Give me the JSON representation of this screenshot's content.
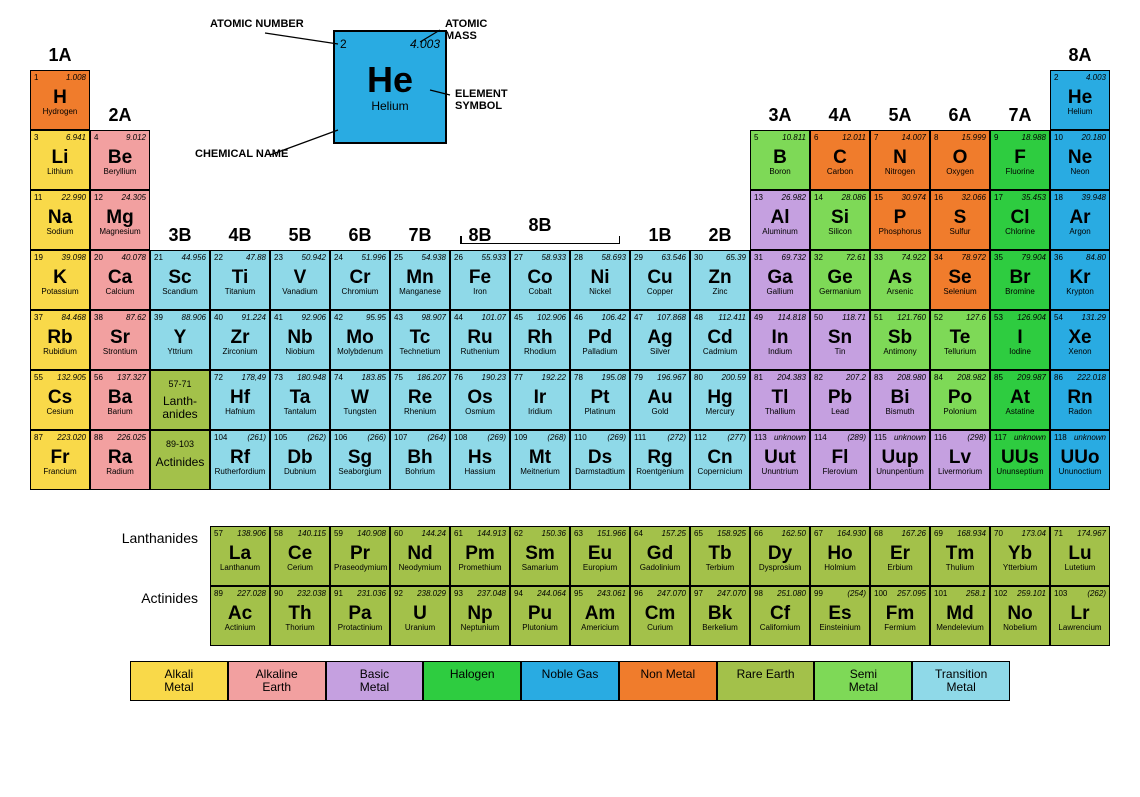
{
  "colors": {
    "alkali": "#f9d949",
    "alkaline": "#f2a0a0",
    "basic": "#c5a0e0",
    "halogen": "#2ecc40",
    "noble": "#29abe2",
    "nonmetal": "#f07c2c",
    "rare": "#a3c14a",
    "semi": "#7ed957",
    "transition": "#8fd9e8"
  },
  "legend_key": {
    "callouts": {
      "atomic_number": "ATOMIC NUMBER",
      "atomic_mass": "ATOMIC MASS",
      "element_symbol": "ELEMENT SYMBOL",
      "chemical_name": "CHEMICAL NAME"
    },
    "example": {
      "num": "2",
      "mass": "4.003",
      "sym": "He",
      "name": "Helium"
    }
  },
  "group_labels": {
    "g1": "1A",
    "g2": "2A",
    "g3": "3B",
    "g4": "4B",
    "g5": "5B",
    "g6": "6B",
    "g7": "7B",
    "g8": "8B",
    "g11": "1B",
    "g12": "2B",
    "g13": "3A",
    "g14": "4A",
    "g15": "5A",
    "g16": "6A",
    "g17": "7A",
    "g18": "8A"
  },
  "lanth_label": "Lanth-\nanides",
  "act_label": "Actinides",
  "lanth_range": "57-71",
  "act_range": "89-103",
  "fblock_labels": {
    "lanth": "Lanthanides",
    "act": "Actinides"
  },
  "legend": [
    {
      "label": "Alkali\nMetal",
      "c": "alkali"
    },
    {
      "label": "Alkaline\nEarth",
      "c": "alkaline"
    },
    {
      "label": "Basic\nMetal",
      "c": "basic"
    },
    {
      "label": "Halogen",
      "c": "halogen"
    },
    {
      "label": "Noble Gas",
      "c": "noble"
    },
    {
      "label": "Non Metal",
      "c": "nonmetal"
    },
    {
      "label": "Rare Earth",
      "c": "rare"
    },
    {
      "label": "Semi\nMetal",
      "c": "semi"
    },
    {
      "label": "Transition\nMetal",
      "c": "transition"
    }
  ],
  "elements": [
    {
      "n": 1,
      "m": "1.008",
      "s": "H",
      "name": "Hydrogen",
      "c": "nonmetal",
      "col": 1,
      "row": 1
    },
    {
      "n": 2,
      "m": "4.003",
      "s": "He",
      "name": "Helium",
      "c": "noble",
      "col": 18,
      "row": 1
    },
    {
      "n": 3,
      "m": "6.941",
      "s": "Li",
      "name": "Lithium",
      "c": "alkali",
      "col": 1,
      "row": 2
    },
    {
      "n": 4,
      "m": "9.012",
      "s": "Be",
      "name": "Beryllium",
      "c": "alkaline",
      "col": 2,
      "row": 2
    },
    {
      "n": 5,
      "m": "10.811",
      "s": "B",
      "name": "Boron",
      "c": "semi",
      "col": 13,
      "row": 2
    },
    {
      "n": 6,
      "m": "12.011",
      "s": "C",
      "name": "Carbon",
      "c": "nonmetal",
      "col": 14,
      "row": 2
    },
    {
      "n": 7,
      "m": "14.007",
      "s": "N",
      "name": "Nitrogen",
      "c": "nonmetal",
      "col": 15,
      "row": 2
    },
    {
      "n": 8,
      "m": "15.999",
      "s": "O",
      "name": "Oxygen",
      "c": "nonmetal",
      "col": 16,
      "row": 2
    },
    {
      "n": 9,
      "m": "18.988",
      "s": "F",
      "name": "Fluorine",
      "c": "halogen",
      "col": 17,
      "row": 2
    },
    {
      "n": 10,
      "m": "20.180",
      "s": "Ne",
      "name": "Neon",
      "c": "noble",
      "col": 18,
      "row": 2
    },
    {
      "n": 11,
      "m": "22.990",
      "s": "Na",
      "name": "Sodium",
      "c": "alkali",
      "col": 1,
      "row": 3
    },
    {
      "n": 12,
      "m": "24.305",
      "s": "Mg",
      "name": "Magnesium",
      "c": "alkaline",
      "col": 2,
      "row": 3
    },
    {
      "n": 13,
      "m": "26.982",
      "s": "Al",
      "name": "Aluminum",
      "c": "basic",
      "col": 13,
      "row": 3
    },
    {
      "n": 14,
      "m": "28.086",
      "s": "Si",
      "name": "Silicon",
      "c": "semi",
      "col": 14,
      "row": 3
    },
    {
      "n": 15,
      "m": "30.974",
      "s": "P",
      "name": "Phosphorus",
      "c": "nonmetal",
      "col": 15,
      "row": 3
    },
    {
      "n": 16,
      "m": "32.066",
      "s": "S",
      "name": "Sulfur",
      "c": "nonmetal",
      "col": 16,
      "row": 3
    },
    {
      "n": 17,
      "m": "35.453",
      "s": "Cl",
      "name": "Chlorine",
      "c": "halogen",
      "col": 17,
      "row": 3
    },
    {
      "n": 18,
      "m": "39.948",
      "s": "Ar",
      "name": "Argon",
      "c": "noble",
      "col": 18,
      "row": 3
    },
    {
      "n": 19,
      "m": "39.098",
      "s": "K",
      "name": "Potassium",
      "c": "alkali",
      "col": 1,
      "row": 4
    },
    {
      "n": 20,
      "m": "40.078",
      "s": "Ca",
      "name": "Calcium",
      "c": "alkaline",
      "col": 2,
      "row": 4
    },
    {
      "n": 21,
      "m": "44.956",
      "s": "Sc",
      "name": "Scandium",
      "c": "transition",
      "col": 3,
      "row": 4
    },
    {
      "n": 22,
      "m": "47.88",
      "s": "Ti",
      "name": "Titanium",
      "c": "transition",
      "col": 4,
      "row": 4
    },
    {
      "n": 23,
      "m": "50.942",
      "s": "V",
      "name": "Vanadium",
      "c": "transition",
      "col": 5,
      "row": 4
    },
    {
      "n": 24,
      "m": "51.996",
      "s": "Cr",
      "name": "Chromium",
      "c": "transition",
      "col": 6,
      "row": 4
    },
    {
      "n": 25,
      "m": "54.938",
      "s": "Mn",
      "name": "Manganese",
      "c": "transition",
      "col": 7,
      "row": 4
    },
    {
      "n": 26,
      "m": "55.933",
      "s": "Fe",
      "name": "Iron",
      "c": "transition",
      "col": 8,
      "row": 4
    },
    {
      "n": 27,
      "m": "58.933",
      "s": "Co",
      "name": "Cobalt",
      "c": "transition",
      "col": 9,
      "row": 4
    },
    {
      "n": 28,
      "m": "58.693",
      "s": "Ni",
      "name": "Nickel",
      "c": "transition",
      "col": 10,
      "row": 4
    },
    {
      "n": 29,
      "m": "63.546",
      "s": "Cu",
      "name": "Copper",
      "c": "transition",
      "col": 11,
      "row": 4
    },
    {
      "n": 30,
      "m": "65.39",
      "s": "Zn",
      "name": "Zinc",
      "c": "transition",
      "col": 12,
      "row": 4
    },
    {
      "n": 31,
      "m": "69.732",
      "s": "Ga",
      "name": "Gallium",
      "c": "basic",
      "col": 13,
      "row": 4
    },
    {
      "n": 32,
      "m": "72.61",
      "s": "Ge",
      "name": "Germanium",
      "c": "semi",
      "col": 14,
      "row": 4
    },
    {
      "n": 33,
      "m": "74.922",
      "s": "As",
      "name": "Arsenic",
      "c": "semi",
      "col": 15,
      "row": 4
    },
    {
      "n": 34,
      "m": "78.972",
      "s": "Se",
      "name": "Selenium",
      "c": "nonmetal",
      "col": 16,
      "row": 4
    },
    {
      "n": 35,
      "m": "79.904",
      "s": "Br",
      "name": "Bromine",
      "c": "halogen",
      "col": 17,
      "row": 4
    },
    {
      "n": 36,
      "m": "84.80",
      "s": "Kr",
      "name": "Krypton",
      "c": "noble",
      "col": 18,
      "row": 4
    },
    {
      "n": 37,
      "m": "84.468",
      "s": "Rb",
      "name": "Rubidium",
      "c": "alkali",
      "col": 1,
      "row": 5
    },
    {
      "n": 38,
      "m": "87.62",
      "s": "Sr",
      "name": "Strontium",
      "c": "alkaline",
      "col": 2,
      "row": 5
    },
    {
      "n": 39,
      "m": "88.906",
      "s": "Y",
      "name": "Yttrium",
      "c": "transition",
      "col": 3,
      "row": 5
    },
    {
      "n": 40,
      "m": "91.224",
      "s": "Zr",
      "name": "Zirconium",
      "c": "transition",
      "col": 4,
      "row": 5
    },
    {
      "n": 41,
      "m": "92.906",
      "s": "Nb",
      "name": "Niobium",
      "c": "transition",
      "col": 5,
      "row": 5
    },
    {
      "n": 42,
      "m": "95.95",
      "s": "Mo",
      "name": "Molybdenum",
      "c": "transition",
      "col": 6,
      "row": 5
    },
    {
      "n": 43,
      "m": "98.907",
      "s": "Tc",
      "name": "Technetium",
      "c": "transition",
      "col": 7,
      "row": 5
    },
    {
      "n": 44,
      "m": "101.07",
      "s": "Ru",
      "name": "Ruthenium",
      "c": "transition",
      "col": 8,
      "row": 5
    },
    {
      "n": 45,
      "m": "102.906",
      "s": "Rh",
      "name": "Rhodium",
      "c": "transition",
      "col": 9,
      "row": 5
    },
    {
      "n": 46,
      "m": "106.42",
      "s": "Pd",
      "name": "Palladium",
      "c": "transition",
      "col": 10,
      "row": 5
    },
    {
      "n": 47,
      "m": "107.868",
      "s": "Ag",
      "name": "Silver",
      "c": "transition",
      "col": 11,
      "row": 5
    },
    {
      "n": 48,
      "m": "112.411",
      "s": "Cd",
      "name": "Cadmium",
      "c": "transition",
      "col": 12,
      "row": 5
    },
    {
      "n": 49,
      "m": "114.818",
      "s": "In",
      "name": "Indium",
      "c": "basic",
      "col": 13,
      "row": 5
    },
    {
      "n": 50,
      "m": "118.71",
      "s": "Sn",
      "name": "Tin",
      "c": "basic",
      "col": 14,
      "row": 5
    },
    {
      "n": 51,
      "m": "121.760",
      "s": "Sb",
      "name": "Antimony",
      "c": "semi",
      "col": 15,
      "row": 5
    },
    {
      "n": 52,
      "m": "127.6",
      "s": "Te",
      "name": "Tellurium",
      "c": "semi",
      "col": 16,
      "row": 5
    },
    {
      "n": 53,
      "m": "126.904",
      "s": "I",
      "name": "Iodine",
      "c": "halogen",
      "col": 17,
      "row": 5
    },
    {
      "n": 54,
      "m": "131.29",
      "s": "Xe",
      "name": "Xenon",
      "c": "noble",
      "col": 18,
      "row": 5
    },
    {
      "n": 55,
      "m": "132.905",
      "s": "Cs",
      "name": "Cesium",
      "c": "alkali",
      "col": 1,
      "row": 6
    },
    {
      "n": 56,
      "m": "137.327",
      "s": "Ba",
      "name": "Barium",
      "c": "alkaline",
      "col": 2,
      "row": 6
    },
    {
      "n": 72,
      "m": "178,49",
      "s": "Hf",
      "name": "Hafnium",
      "c": "transition",
      "col": 4,
      "row": 6
    },
    {
      "n": 73,
      "m": "180.948",
      "s": "Ta",
      "name": "Tantalum",
      "c": "transition",
      "col": 5,
      "row": 6
    },
    {
      "n": 74,
      "m": "183.85",
      "s": "W",
      "name": "Tungsten",
      "c": "transition",
      "col": 6,
      "row": 6
    },
    {
      "n": 75,
      "m": "186.207",
      "s": "Re",
      "name": "Rhenium",
      "c": "transition",
      "col": 7,
      "row": 6
    },
    {
      "n": 76,
      "m": "190.23",
      "s": "Os",
      "name": "Osmium",
      "c": "transition",
      "col": 8,
      "row": 6
    },
    {
      "n": 77,
      "m": "192.22",
      "s": "Ir",
      "name": "Iridium",
      "c": "transition",
      "col": 9,
      "row": 6
    },
    {
      "n": 78,
      "m": "195.08",
      "s": "Pt",
      "name": "Platinum",
      "c": "transition",
      "col": 10,
      "row": 6
    },
    {
      "n": 79,
      "m": "196.967",
      "s": "Au",
      "name": "Gold",
      "c": "transition",
      "col": 11,
      "row": 6
    },
    {
      "n": 80,
      "m": "200.59",
      "s": "Hg",
      "name": "Mercury",
      "c": "transition",
      "col": 12,
      "row": 6
    },
    {
      "n": 81,
      "m": "204.383",
      "s": "Tl",
      "name": "Thallium",
      "c": "basic",
      "col": 13,
      "row": 6
    },
    {
      "n": 82,
      "m": "207.2",
      "s": "Pb",
      "name": "Lead",
      "c": "basic",
      "col": 14,
      "row": 6
    },
    {
      "n": 83,
      "m": "208.980",
      "s": "Bi",
      "name": "Bismuth",
      "c": "basic",
      "col": 15,
      "row": 6
    },
    {
      "n": 84,
      "m": "208.982",
      "s": "Po",
      "name": "Polonium",
      "c": "semi",
      "col": 16,
      "row": 6
    },
    {
      "n": 85,
      "m": "209.987",
      "s": "At",
      "name": "Astatine",
      "c": "halogen",
      "col": 17,
      "row": 6
    },
    {
      "n": 86,
      "m": "222.018",
      "s": "Rn",
      "name": "Radon",
      "c": "noble",
      "col": 18,
      "row": 6
    },
    {
      "n": 87,
      "m": "223.020",
      "s": "Fr",
      "name": "Francium",
      "c": "alkali",
      "col": 1,
      "row": 7
    },
    {
      "n": 88,
      "m": "226.025",
      "s": "Ra",
      "name": "Radium",
      "c": "alkaline",
      "col": 2,
      "row": 7
    },
    {
      "n": 104,
      "m": "(261)",
      "s": "Rf",
      "name": "Rutherfordium",
      "c": "transition",
      "col": 4,
      "row": 7
    },
    {
      "n": 105,
      "m": "(262)",
      "s": "Db",
      "name": "Dubnium",
      "c": "transition",
      "col": 5,
      "row": 7
    },
    {
      "n": 106,
      "m": "(266)",
      "s": "Sg",
      "name": "Seaborgium",
      "c": "transition",
      "col": 6,
      "row": 7
    },
    {
      "n": 107,
      "m": "(264)",
      "s": "Bh",
      "name": "Bohrium",
      "c": "transition",
      "col": 7,
      "row": 7
    },
    {
      "n": 108,
      "m": "(269)",
      "s": "Hs",
      "name": "Hassium",
      "c": "transition",
      "col": 8,
      "row": 7
    },
    {
      "n": 109,
      "m": "(268)",
      "s": "Mt",
      "name": "Meitnerium",
      "c": "transition",
      "col": 9,
      "row": 7
    },
    {
      "n": 110,
      "m": "(269)",
      "s": "Ds",
      "name": "Darmstadtium",
      "c": "transition",
      "col": 10,
      "row": 7
    },
    {
      "n": 111,
      "m": "(272)",
      "s": "Rg",
      "name": "Roentgenium",
      "c": "transition",
      "col": 11,
      "row": 7
    },
    {
      "n": 112,
      "m": "(277)",
      "s": "Cn",
      "name": "Copernicium",
      "c": "transition",
      "col": 12,
      "row": 7
    },
    {
      "n": 113,
      "m": "unknown",
      "s": "Uut",
      "name": "Ununtrium",
      "c": "basic",
      "col": 13,
      "row": 7
    },
    {
      "n": 114,
      "m": "(289)",
      "s": "Fl",
      "name": "Flerovium",
      "c": "basic",
      "col": 14,
      "row": 7
    },
    {
      "n": 115,
      "m": "unknown",
      "s": "Uup",
      "name": "Ununpentium",
      "c": "basic",
      "col": 15,
      "row": 7
    },
    {
      "n": 116,
      "m": "(298)",
      "s": "Lv",
      "name": "Livermorium",
      "c": "basic",
      "col": 16,
      "row": 7
    },
    {
      "n": 117,
      "m": "unknown",
      "s": "UUs",
      "name": "Ununseptium",
      "c": "halogen",
      "col": 17,
      "row": 7
    },
    {
      "n": 118,
      "m": "unknown",
      "s": "UUo",
      "name": "Ununoctium",
      "c": "noble",
      "col": 18,
      "row": 7
    }
  ],
  "fblock": [
    {
      "n": 57,
      "m": "138.906",
      "s": "La",
      "name": "Lanthanum",
      "c": "rare",
      "row": 0,
      "col": 0
    },
    {
      "n": 58,
      "m": "140.115",
      "s": "Ce",
      "name": "Cerium",
      "c": "rare",
      "row": 0,
      "col": 1
    },
    {
      "n": 59,
      "m": "140.908",
      "s": "Pr",
      "name": "Praseodymium",
      "c": "rare",
      "row": 0,
      "col": 2
    },
    {
      "n": 60,
      "m": "144.24",
      "s": "Nd",
      "name": "Neodymium",
      "c": "rare",
      "row": 0,
      "col": 3
    },
    {
      "n": 61,
      "m": "144.913",
      "s": "Pm",
      "name": "Promethium",
      "c": "rare",
      "row": 0,
      "col": 4
    },
    {
      "n": 62,
      "m": "150.36",
      "s": "Sm",
      "name": "Samarium",
      "c": "rare",
      "row": 0,
      "col": 5
    },
    {
      "n": 63,
      "m": "151.966",
      "s": "Eu",
      "name": "Europium",
      "c": "rare",
      "row": 0,
      "col": 6
    },
    {
      "n": 64,
      "m": "157.25",
      "s": "Gd",
      "name": "Gadolinium",
      "c": "rare",
      "row": 0,
      "col": 7
    },
    {
      "n": 65,
      "m": "158.925",
      "s": "Tb",
      "name": "Terbium",
      "c": "rare",
      "row": 0,
      "col": 8
    },
    {
      "n": 66,
      "m": "162.50",
      "s": "Dy",
      "name": "Dysprosium",
      "c": "rare",
      "row": 0,
      "col": 9
    },
    {
      "n": 67,
      "m": "164.930",
      "s": "Ho",
      "name": "Holmium",
      "c": "rare",
      "row": 0,
      "col": 10
    },
    {
      "n": 68,
      "m": "167.26",
      "s": "Er",
      "name": "Erbium",
      "c": "rare",
      "row": 0,
      "col": 11
    },
    {
      "n": 69,
      "m": "168.934",
      "s": "Tm",
      "name": "Thulium",
      "c": "rare",
      "row": 0,
      "col": 12
    },
    {
      "n": 70,
      "m": "173.04",
      "s": "Yb",
      "name": "Ytterbium",
      "c": "rare",
      "row": 0,
      "col": 13
    },
    {
      "n": 71,
      "m": "174.967",
      "s": "Lu",
      "name": "Lutetium",
      "c": "rare",
      "row": 0,
      "col": 14
    },
    {
      "n": 89,
      "m": "227.028",
      "s": "Ac",
      "name": "Actinium",
      "c": "rare",
      "row": 1,
      "col": 0
    },
    {
      "n": 90,
      "m": "232.038",
      "s": "Th",
      "name": "Thorium",
      "c": "rare",
      "row": 1,
      "col": 1
    },
    {
      "n": 91,
      "m": "231.036",
      "s": "Pa",
      "name": "Protactinium",
      "c": "rare",
      "row": 1,
      "col": 2
    },
    {
      "n": 92,
      "m": "238.029",
      "s": "U",
      "name": "Uranium",
      "c": "rare",
      "row": 1,
      "col": 3
    },
    {
      "n": 93,
      "m": "237.048",
      "s": "Np",
      "name": "Neptunium",
      "c": "rare",
      "row": 1,
      "col": 4
    },
    {
      "n": 94,
      "m": "244.064",
      "s": "Pu",
      "name": "Plutonium",
      "c": "rare",
      "row": 1,
      "col": 5
    },
    {
      "n": 95,
      "m": "243.061",
      "s": "Am",
      "name": "Americium",
      "c": "rare",
      "row": 1,
      "col": 6
    },
    {
      "n": 96,
      "m": "247.070",
      "s": "Cm",
      "name": "Curium",
      "c": "rare",
      "row": 1,
      "col": 7
    },
    {
      "n": 97,
      "m": "247.070",
      "s": "Bk",
      "name": "Berkelium",
      "c": "rare",
      "row": 1,
      "col": 8
    },
    {
      "n": 98,
      "m": "251.080",
      "s": "Cf",
      "name": "Californium",
      "c": "rare",
      "row": 1,
      "col": 9
    },
    {
      "n": 99,
      "m": "(254)",
      "s": "Es",
      "name": "Einsteinium",
      "c": "rare",
      "row": 1,
      "col": 10
    },
    {
      "n": 100,
      "m": "257.095",
      "s": "Fm",
      "name": "Fermium",
      "c": "rare",
      "row": 1,
      "col": 11
    },
    {
      "n": 101,
      "m": "258.1",
      "s": "Md",
      "name": "Mendelevium",
      "c": "rare",
      "row": 1,
      "col": 12
    },
    {
      "n": 102,
      "m": "259.101",
      "s": "No",
      "name": "Nobelium",
      "c": "rare",
      "row": 1,
      "col": 13
    },
    {
      "n": 103,
      "m": "(262)",
      "s": "Lr",
      "name": "Lawrencium",
      "c": "rare",
      "row": 1,
      "col": 14
    }
  ]
}
